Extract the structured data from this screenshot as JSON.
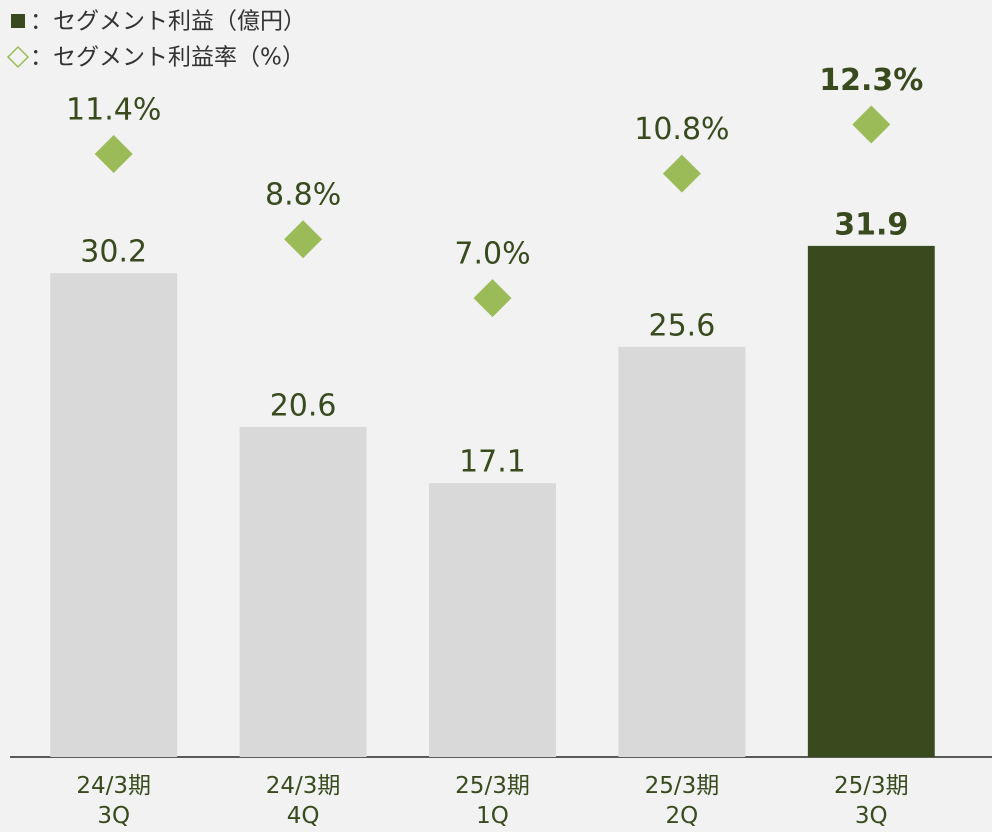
{
  "chart_data": {
    "type": "bar_line",
    "categories": [
      [
        "24/3期",
        "3Q"
      ],
      [
        "24/3期",
        "4Q"
      ],
      [
        "25/3期",
        "1Q"
      ],
      [
        "25/3期",
        "2Q"
      ],
      [
        "25/3期",
        "3Q"
      ]
    ],
    "series": [
      {
        "name": "：セグメント利益（億円）",
        "type": "bar",
        "color": "#d9d9d9",
        "highlight_color": "#384a1e",
        "highlight": 4,
        "values": [
          30.2,
          20.6,
          17.1,
          25.6,
          31.9
        ]
      },
      {
        "name": "：セグメント利益率（%）",
        "type": "diamond",
        "axis": "y2",
        "color": "#9bbb59",
        "highlight": 4,
        "values": [
          11.4,
          8.8,
          7.0,
          10.8,
          12.3
        ],
        "value_labels": [
          "11.4%",
          "8.8%",
          "7.0%",
          "10.8%",
          "12.3%"
        ]
      }
    ],
    "ylim": [
      0,
      45
    ],
    "y2lim": [
      -7,
      15
    ]
  }
}
